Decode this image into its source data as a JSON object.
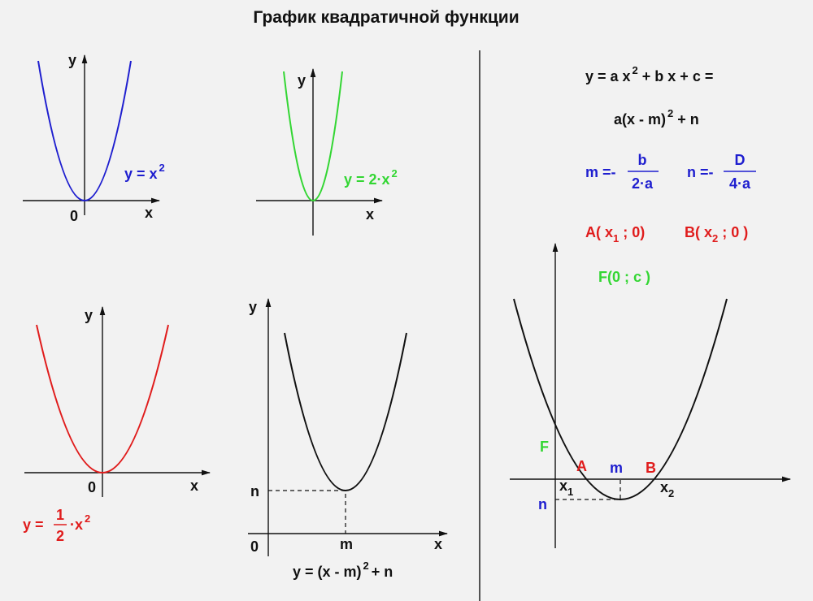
{
  "title": "График квадратичной функции",
  "panels": [
    {
      "y": "y",
      "x": "x",
      "origin": "0",
      "formula": [
        "y = x",
        "2"
      ]
    },
    {
      "y": "y",
      "x": "x",
      "formula": [
        "y = 2·x",
        "2"
      ]
    },
    {
      "y": "y",
      "x": "x",
      "origin": "0",
      "formula": [
        "y =",
        "1",
        "2",
        "·x",
        "2"
      ]
    },
    {
      "y": "y",
      "x": "x",
      "origin": "0",
      "m": "m",
      "n": "n",
      "formula": [
        "y = (x - m)",
        "2",
        "+ n"
      ]
    }
  ],
  "formulas": {
    "general": [
      "y = a x",
      "2",
      " + b x + c ="
    ],
    "vertex_form": [
      "a(x - m)",
      "2",
      " + n"
    ],
    "m": {
      "lhs": "m =-",
      "num": "b",
      "den": "2·a"
    },
    "n": {
      "lhs": "n =-",
      "num": "D",
      "den": "4·a"
    },
    "A": [
      "A( x",
      "1",
      " ; 0)"
    ],
    "B": [
      "B( x",
      "2",
      " ; 0 )"
    ],
    "F": "F(0 ; c )"
  },
  "graph": {
    "F": "F",
    "A": "A",
    "m": "m",
    "B": "B",
    "x1": [
      "x",
      "1"
    ],
    "x2": [
      "x",
      "2"
    ],
    "n": "n"
  }
}
